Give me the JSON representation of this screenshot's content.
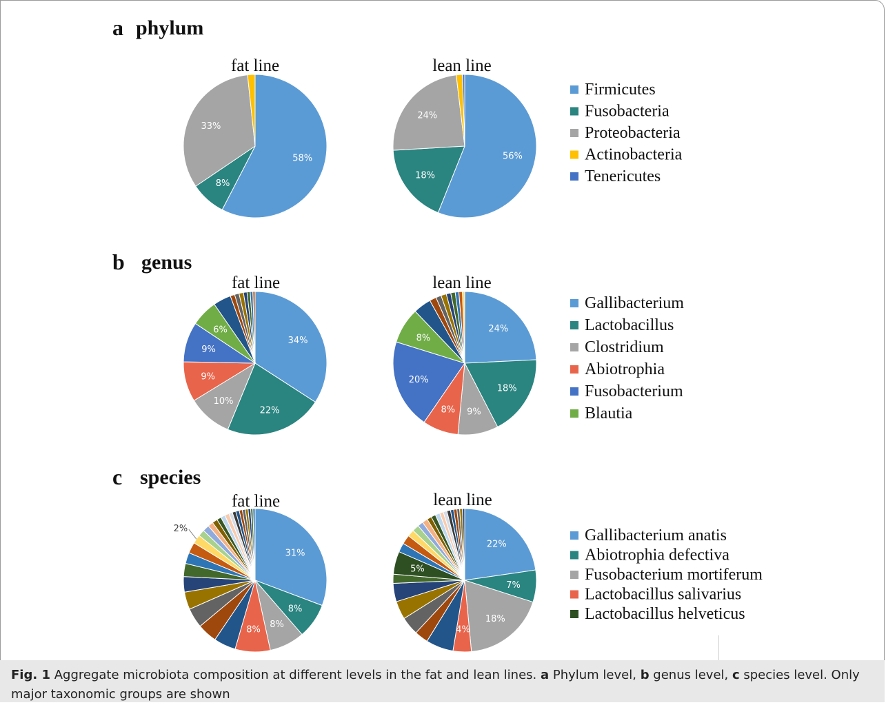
{
  "colors": {
    "firmicutes": "#5B9BD5",
    "fusobacteria": "#2A8480",
    "proteobacteria": "#A5A5A5",
    "actinobacteria": "#FFC000",
    "tenericutes": "#4472C4",
    "abiotrophia": "#E8644A",
    "fusobacterium": "#4472C4",
    "blautia": "#70AD47",
    "helveticus": "#2E4F22"
  },
  "panels": {
    "a": {
      "letter": "a",
      "title": "phylum"
    },
    "b": {
      "letter": "b",
      "title": "genus"
    },
    "c": {
      "letter": "c",
      "title": "species"
    }
  },
  "legends": {
    "a": [
      "Firmicutes",
      "Fusobacteria",
      "Proteobacteria",
      "Actinobacteria",
      "Tenericutes"
    ],
    "b": [
      "Gallibacterium",
      "Lactobacillus",
      "Clostridium",
      "Abiotrophia",
      "Fusobacterium",
      "Blautia"
    ],
    "c": [
      "Gallibacterium anatis",
      "Abiotrophia defectiva",
      "Fusobacterium mortiferum",
      "Lactobacillus salivarius",
      "Lactobacillus helveticus"
    ]
  },
  "chart_data": [
    {
      "type": "pie",
      "panel": "a",
      "title": "fat line",
      "slices": [
        {
          "name": "Firmicutes",
          "value": 58,
          "label": "58%"
        },
        {
          "name": "Fusobacteria",
          "value": 8,
          "label": "8%"
        },
        {
          "name": "Proteobacteria",
          "value": 33,
          "label": "33%"
        },
        {
          "name": "Actinobacteria",
          "value": 1.7,
          "label": ""
        }
      ]
    },
    {
      "type": "pie",
      "panel": "a",
      "title": "lean line",
      "slices": [
        {
          "name": "Firmicutes",
          "value": 56,
          "label": "56%"
        },
        {
          "name": "Fusobacteria",
          "value": 18,
          "label": "18%"
        },
        {
          "name": "Proteobacteria",
          "value": 24,
          "label": "24%"
        },
        {
          "name": "Actinobacteria",
          "value": 1.4,
          "label": ""
        },
        {
          "name": "Tenericutes",
          "value": 0.5,
          "label": ""
        }
      ]
    },
    {
      "type": "pie",
      "panel": "b",
      "title": "fat line",
      "slices": [
        {
          "name": "Gallibacterium",
          "value": 34,
          "label": "34%"
        },
        {
          "name": "Lactobacillus",
          "value": 22,
          "label": "22%"
        },
        {
          "name": "Clostridium",
          "value": 10,
          "label": "10%"
        },
        {
          "name": "Abiotrophia",
          "value": 9,
          "label": "9%"
        },
        {
          "name": "Fusobacterium",
          "value": 9,
          "label": "9%"
        },
        {
          "name": "Blautia",
          "value": 6,
          "label": "6%"
        },
        {
          "name": "other",
          "value": 4,
          "label": ""
        },
        {
          "name": "other",
          "value": 1,
          "label": ""
        },
        {
          "name": "other",
          "value": 1,
          "label": ""
        },
        {
          "name": "other",
          "value": 1,
          "label": ""
        },
        {
          "name": "other",
          "value": 0.8,
          "label": ""
        },
        {
          "name": "other",
          "value": 0.7,
          "label": ""
        },
        {
          "name": "other",
          "value": 0.6,
          "label": ""
        },
        {
          "name": "other",
          "value": 0.5,
          "label": ""
        }
      ]
    },
    {
      "type": "pie",
      "panel": "b",
      "title": "lean line",
      "slices": [
        {
          "name": "Gallibacterium",
          "value": 24,
          "label": "24%"
        },
        {
          "name": "Lactobacillus",
          "value": 18,
          "label": "18%"
        },
        {
          "name": "Clostridium",
          "value": 9,
          "label": "9%"
        },
        {
          "name": "Abiotrophia",
          "value": 8,
          "label": "8%"
        },
        {
          "name": "Fusobacterium",
          "value": 20,
          "label": "20%"
        },
        {
          "name": "Blautia",
          "value": 8,
          "label": "8%"
        },
        {
          "name": "other",
          "value": 4,
          "label": ""
        },
        {
          "name": "other",
          "value": 1.5,
          "label": ""
        },
        {
          "name": "other",
          "value": 1.2,
          "label": ""
        },
        {
          "name": "other",
          "value": 1.2,
          "label": ""
        },
        {
          "name": "other",
          "value": 1,
          "label": ""
        },
        {
          "name": "other",
          "value": 1,
          "label": ""
        },
        {
          "name": "other",
          "value": 0.8,
          "label": ""
        },
        {
          "name": "other",
          "value": 0.8,
          "label": ""
        },
        {
          "name": "other",
          "value": 0.5,
          "label": ""
        }
      ]
    },
    {
      "type": "pie",
      "panel": "c",
      "title": "fat line",
      "slices": [
        {
          "name": "Gallibacterium anatis",
          "value": 31,
          "label": "31%"
        },
        {
          "name": "Abiotrophia defectiva",
          "value": 8,
          "label": "8%"
        },
        {
          "name": "Fusobacterium mortiferum",
          "value": 8,
          "label": "8%"
        },
        {
          "name": "Lactobacillus salivarius",
          "value": 8,
          "label": "8%"
        },
        {
          "name": "other",
          "value": 5,
          "label": ""
        },
        {
          "name": "other",
          "value": 4.5,
          "label": ""
        },
        {
          "name": "other",
          "value": 4.5,
          "label": ""
        },
        {
          "name": "other",
          "value": 4,
          "label": ""
        },
        {
          "name": "other",
          "value": 3.5,
          "label": ""
        },
        {
          "name": "other",
          "value": 3,
          "label": ""
        },
        {
          "name": "other",
          "value": 2.5,
          "label": ""
        },
        {
          "name": "other",
          "value": 2.5,
          "label": ""
        },
        {
          "name": "other",
          "value": 2,
          "label": "2%"
        },
        {
          "name": "other",
          "value": 1.5,
          "label": ""
        },
        {
          "name": "other",
          "value": 1.5,
          "label": ""
        },
        {
          "name": "other",
          "value": 1.2,
          "label": ""
        },
        {
          "name": "other",
          "value": 1.2,
          "label": ""
        },
        {
          "name": "other",
          "value": 1,
          "label": ""
        },
        {
          "name": "other",
          "value": 1,
          "label": ""
        },
        {
          "name": "other",
          "value": 1,
          "label": ""
        },
        {
          "name": "other",
          "value": 0.8,
          "label": ""
        },
        {
          "name": "other",
          "value": 0.8,
          "label": ""
        },
        {
          "name": "other",
          "value": 0.8,
          "label": ""
        },
        {
          "name": "other",
          "value": 0.7,
          "label": ""
        },
        {
          "name": "other",
          "value": 0.7,
          "label": ""
        },
        {
          "name": "other",
          "value": 0.6,
          "label": ""
        },
        {
          "name": "other",
          "value": 0.6,
          "label": ""
        },
        {
          "name": "other",
          "value": 0.5,
          "label": ""
        },
        {
          "name": "other",
          "value": 0.5,
          "label": ""
        }
      ]
    },
    {
      "type": "pie",
      "panel": "c",
      "title": "lean line",
      "slices": [
        {
          "name": "Gallibacterium anatis",
          "value": 22,
          "label": "22%"
        },
        {
          "name": "Abiotrophia defectiva",
          "value": 7,
          "label": "7%"
        },
        {
          "name": "Fusobacterium mortiferum",
          "value": 18,
          "label": "18%"
        },
        {
          "name": "Lactobacillus salivarius",
          "value": 4,
          "label": "4%"
        },
        {
          "name": "other",
          "value": 6,
          "label": ""
        },
        {
          "name": "other",
          "value": 3,
          "label": ""
        },
        {
          "name": "other",
          "value": 4,
          "label": ""
        },
        {
          "name": "other",
          "value": 4,
          "label": ""
        },
        {
          "name": "other",
          "value": 4,
          "label": ""
        },
        {
          "name": "other",
          "value": 2,
          "label": ""
        },
        {
          "name": "Lactobacillus helveticus",
          "value": 5,
          "label": "5%"
        },
        {
          "name": "other",
          "value": 2,
          "label": ""
        },
        {
          "name": "other",
          "value": 2,
          "label": ""
        },
        {
          "name": "other",
          "value": 1.5,
          "label": ""
        },
        {
          "name": "other",
          "value": 1.5,
          "label": ""
        },
        {
          "name": "other",
          "value": 1.2,
          "label": ""
        },
        {
          "name": "other",
          "value": 1.2,
          "label": ""
        },
        {
          "name": "other",
          "value": 1,
          "label": ""
        },
        {
          "name": "other",
          "value": 1,
          "label": ""
        },
        {
          "name": "other",
          "value": 1,
          "label": ""
        },
        {
          "name": "other",
          "value": 0.8,
          "label": ""
        },
        {
          "name": "other",
          "value": 0.8,
          "label": ""
        },
        {
          "name": "other",
          "value": 0.8,
          "label": ""
        },
        {
          "name": "other",
          "value": 0.7,
          "label": ""
        },
        {
          "name": "other",
          "value": 0.7,
          "label": ""
        },
        {
          "name": "other",
          "value": 0.6,
          "label": ""
        },
        {
          "name": "other",
          "value": 0.6,
          "label": ""
        },
        {
          "name": "other",
          "value": 0.5,
          "label": ""
        }
      ]
    }
  ],
  "caption": {
    "fig": "Fig. 1",
    "text1": " Aggregate microbiota composition at different levels in the fat and lean lines. ",
    "a": "a",
    "text2": " Phylum level, ",
    "b": "b",
    "text3": " genus level, ",
    "c": "c",
    "text4": " species level. Only major taxonomic groups are shown"
  }
}
